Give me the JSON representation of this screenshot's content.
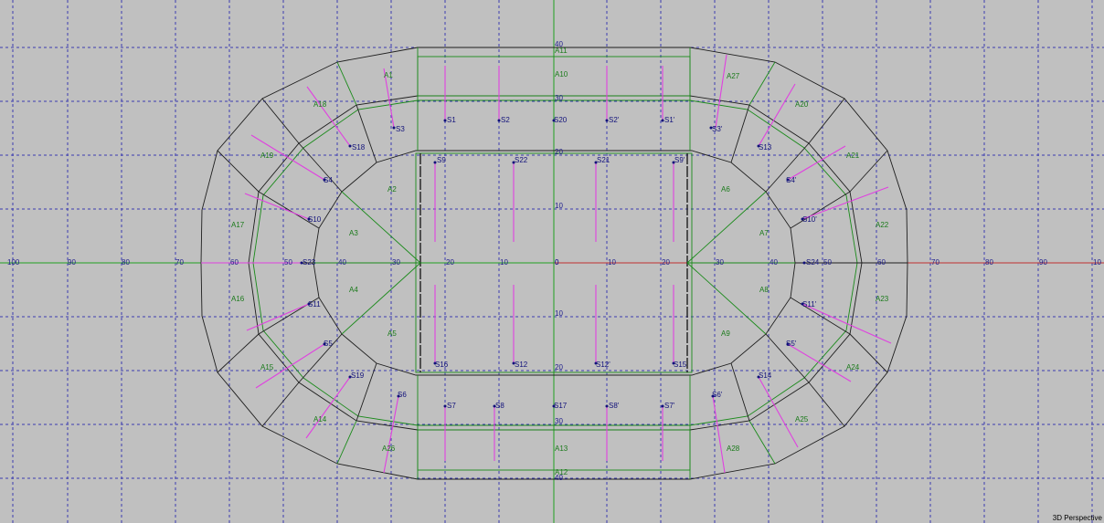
{
  "view": {
    "label": "3D Perspective"
  },
  "colors": {
    "background": "#c0c0c0",
    "grid": "#3b3bb0",
    "outline": "#1e1e1e",
    "area_outline": "#1a8a1a",
    "speaker_aim": "#e040e0",
    "axis_x": "#c03030",
    "axis_y": "#20a020"
  },
  "x_axis": {
    "ticks": [
      "100",
      "90",
      "80",
      "70",
      "60",
      "50",
      "40",
      "30",
      "20",
      "10",
      "0",
      "10",
      "20",
      "30",
      "40",
      "50",
      "60",
      "70",
      "80",
      "90",
      "10"
    ]
  },
  "y_axis": {
    "ticks": [
      "40",
      "30",
      "20",
      "10",
      "0",
      "10",
      "20",
      "30",
      "40"
    ]
  },
  "areas": {
    "a1": "A1",
    "a2": "A2",
    "a3": "A3",
    "a4": "A4",
    "a5": "A5",
    "a6": "A6",
    "a7": "A7",
    "a8": "A8",
    "a9": "A9",
    "a10": "A10",
    "a11": "A11",
    "a12": "A12",
    "a13": "A13",
    "a14": "A14",
    "a15": "A15",
    "a16": "A16",
    "a17": "A17",
    "a18": "A18",
    "a19": "A19",
    "a20": "A20",
    "a21": "A21",
    "a22": "A22",
    "a23": "A23",
    "a24": "A24",
    "a25": "A25",
    "a26": "A26",
    "a27": "A27",
    "a28": "A28"
  },
  "speakers": {
    "s1": "S1",
    "s2": "S2",
    "s20": "S20",
    "s2p": "S2'",
    "s1p": "S1'",
    "s3": "S3",
    "s3p": "S3'",
    "s18": "S18",
    "s13": "S13",
    "s9": "S9",
    "s22": "S22",
    "s21": "S21",
    "s9p": "S9'",
    "s4": "S4",
    "s4p": "S4'",
    "s10": "S10",
    "s10p": "S10'",
    "s23": "S23",
    "s24": "S24",
    "s11": "S11",
    "s11p": "S11'",
    "s5": "S5",
    "s5p": "S5'",
    "s16": "S16",
    "s12": "S12",
    "s12p": "S12'",
    "s15": "S15",
    "s19": "S19",
    "s14": "S14",
    "s6": "S6",
    "s6p": "S6'",
    "s7": "S7",
    "s8": "S8",
    "s17": "S17",
    "s8p": "S8'",
    "s7p": "S7'"
  }
}
